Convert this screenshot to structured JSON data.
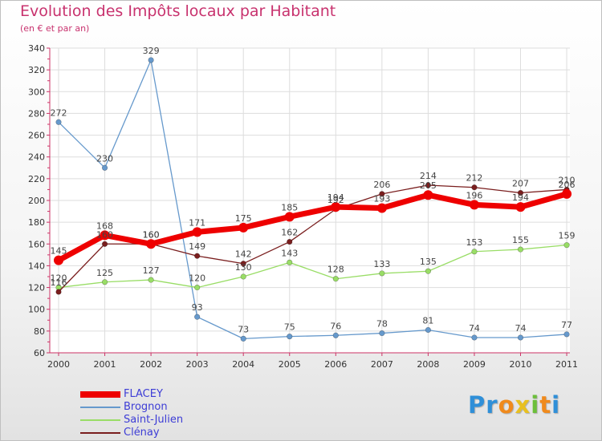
{
  "title": "Evolution des Impôts locaux par Habitant",
  "subtitle": "(en € et par an)",
  "logo": {
    "letters": [
      "P",
      "r",
      "o",
      "x",
      "i",
      "t",
      "i"
    ],
    "colors": [
      "#2f8fd8",
      "#2f8fd8",
      "#f08a1c",
      "#e8c020",
      "#6cbf3a",
      "#f08a1c",
      "#2f8fd8"
    ]
  },
  "chart_data": {
    "type": "line",
    "x": [
      "2000",
      "2001",
      "2002",
      "2003",
      "2004",
      "2005",
      "2006",
      "2007",
      "2008",
      "2009",
      "2010",
      "2011"
    ],
    "ylim": [
      60,
      340
    ],
    "yticks": [
      60,
      80,
      100,
      120,
      140,
      160,
      180,
      200,
      220,
      240,
      260,
      280,
      300,
      320,
      340
    ],
    "grid": true,
    "legend_position": "bottom-left",
    "series": [
      {
        "name": "FLACEY",
        "color": "#ee0000",
        "values": [
          145,
          168,
          160,
          171,
          175,
          185,
          194,
          193,
          205,
          196,
          194,
          206
        ],
        "labels": [
          "145",
          "168",
          "160",
          "171",
          "175",
          "185",
          "194",
          "193",
          "205",
          "196",
          "194",
          "206"
        ],
        "width": 7
      },
      {
        "name": "Brognon",
        "color": "#6699cc",
        "values": [
          272,
          230,
          329,
          93,
          73,
          75,
          76,
          78,
          81,
          74,
          74,
          77
        ],
        "labels": [
          "272",
          "230",
          "329",
          "93",
          "73",
          "75",
          "76",
          "78",
          "81",
          "74",
          "74",
          "77"
        ],
        "width": 1.3
      },
      {
        "name": "Saint-Julien",
        "color": "#99dd66",
        "values": [
          120,
          125,
          127,
          120,
          130,
          143,
          128,
          133,
          135,
          153,
          155,
          159
        ],
        "labels": [
          "120",
          "125",
          "127",
          "120",
          "130",
          "143",
          "128",
          "133",
          "135",
          "153",
          "155",
          "159"
        ],
        "width": 1.3
      },
      {
        "name": "Clénay",
        "color": "#7a1e1e",
        "values": [
          116,
          160,
          160,
          149,
          142,
          162,
          192,
          206,
          214,
          212,
          207,
          210
        ],
        "labels": [
          "116",
          "160",
          "160",
          "149",
          "142",
          "162",
          "192",
          "206",
          "214",
          "212",
          "207",
          "210"
        ],
        "width": 1.3
      }
    ]
  }
}
